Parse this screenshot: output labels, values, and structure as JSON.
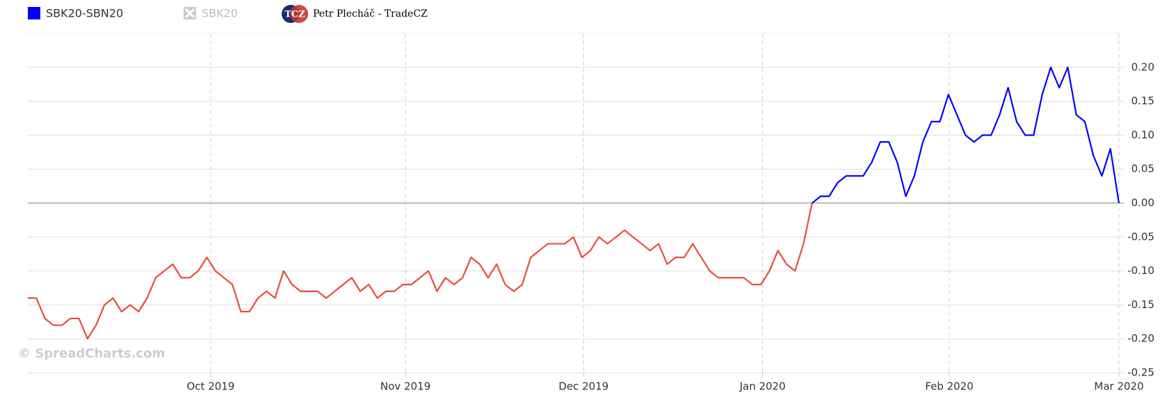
{
  "chart_data": {
    "type": "line",
    "legend": [
      "SBK20-SBN20",
      "SBK20"
    ],
    "legend_disabled": [
      false,
      true
    ],
    "credit": "Petr Plecháč - TradeCZ",
    "credit_logo": "TCZ",
    "watermark": "© SpreadCharts.com",
    "series": [
      {
        "name": "SBK20-SBN20",
        "color": "#0000ff",
        "negative_color": "#e74c3c",
        "values": [
          -0.14,
          -0.14,
          -0.17,
          -0.18,
          -0.18,
          -0.17,
          -0.17,
          -0.2,
          -0.18,
          -0.15,
          -0.14,
          -0.16,
          -0.15,
          -0.16,
          -0.14,
          -0.11,
          -0.1,
          -0.09,
          -0.11,
          -0.11,
          -0.1,
          -0.08,
          -0.1,
          -0.11,
          -0.12,
          -0.16,
          -0.16,
          -0.14,
          -0.13,
          -0.14,
          -0.1,
          -0.12,
          -0.13,
          -0.13,
          -0.13,
          -0.14,
          -0.13,
          -0.12,
          -0.11,
          -0.13,
          -0.12,
          -0.14,
          -0.13,
          -0.13,
          -0.12,
          -0.12,
          -0.11,
          -0.1,
          -0.13,
          -0.11,
          -0.12,
          -0.11,
          -0.08,
          -0.09,
          -0.11,
          -0.09,
          -0.12,
          -0.13,
          -0.12,
          -0.08,
          -0.07,
          -0.06,
          -0.06,
          -0.06,
          -0.05,
          -0.08,
          -0.07,
          -0.05,
          -0.06,
          -0.05,
          -0.04,
          -0.05,
          -0.06,
          -0.07,
          -0.06,
          -0.09,
          -0.08,
          -0.08,
          -0.06,
          -0.08,
          -0.1,
          -0.11,
          -0.11,
          -0.11,
          -0.11,
          -0.12,
          -0.12,
          -0.1,
          -0.07,
          -0.09,
          -0.1,
          -0.06,
          0.0,
          0.01,
          0.01,
          0.03,
          0.04,
          0.04,
          0.04,
          0.06,
          0.09,
          0.09,
          0.06,
          0.01,
          0.04,
          0.09,
          0.12,
          0.12,
          0.16,
          0.13,
          0.1,
          0.09,
          0.1,
          0.1,
          0.13,
          0.17,
          0.12,
          0.1,
          0.1,
          0.16,
          0.2,
          0.17,
          0.2,
          0.13,
          0.12,
          0.07,
          0.04,
          0.08,
          0.0
        ]
      }
    ],
    "xlim": [
      0,
      128
    ],
    "xticks": [
      {
        "value": 21.45,
        "label": "Oct 2019"
      },
      {
        "value": 44.3,
        "label": "Nov 2019"
      },
      {
        "value": 65.2,
        "label": "Dec 2019"
      },
      {
        "value": 86.2,
        "label": "Jan 2020"
      },
      {
        "value": 108.1,
        "label": "Feb 2020"
      },
      {
        "value": 128,
        "label": "Mar 2020"
      }
    ],
    "ylim": [
      -0.25,
      0.25
    ],
    "yticks": [
      {
        "value": -0.25,
        "label": "-0.25"
      },
      {
        "value": -0.2,
        "label": "-0.20"
      },
      {
        "value": -0.15,
        "label": "-0.15"
      },
      {
        "value": -0.1,
        "label": "-0.10"
      },
      {
        "value": -0.05,
        "label": "-0.05"
      },
      {
        "value": 0,
        "label": "0.00"
      },
      {
        "value": 0.05,
        "label": "0.05"
      },
      {
        "value": 0.1,
        "label": "0.10"
      },
      {
        "value": 0.15,
        "label": "0.15"
      },
      {
        "value": 0.2,
        "label": "0.20"
      }
    ],
    "grid": true
  }
}
